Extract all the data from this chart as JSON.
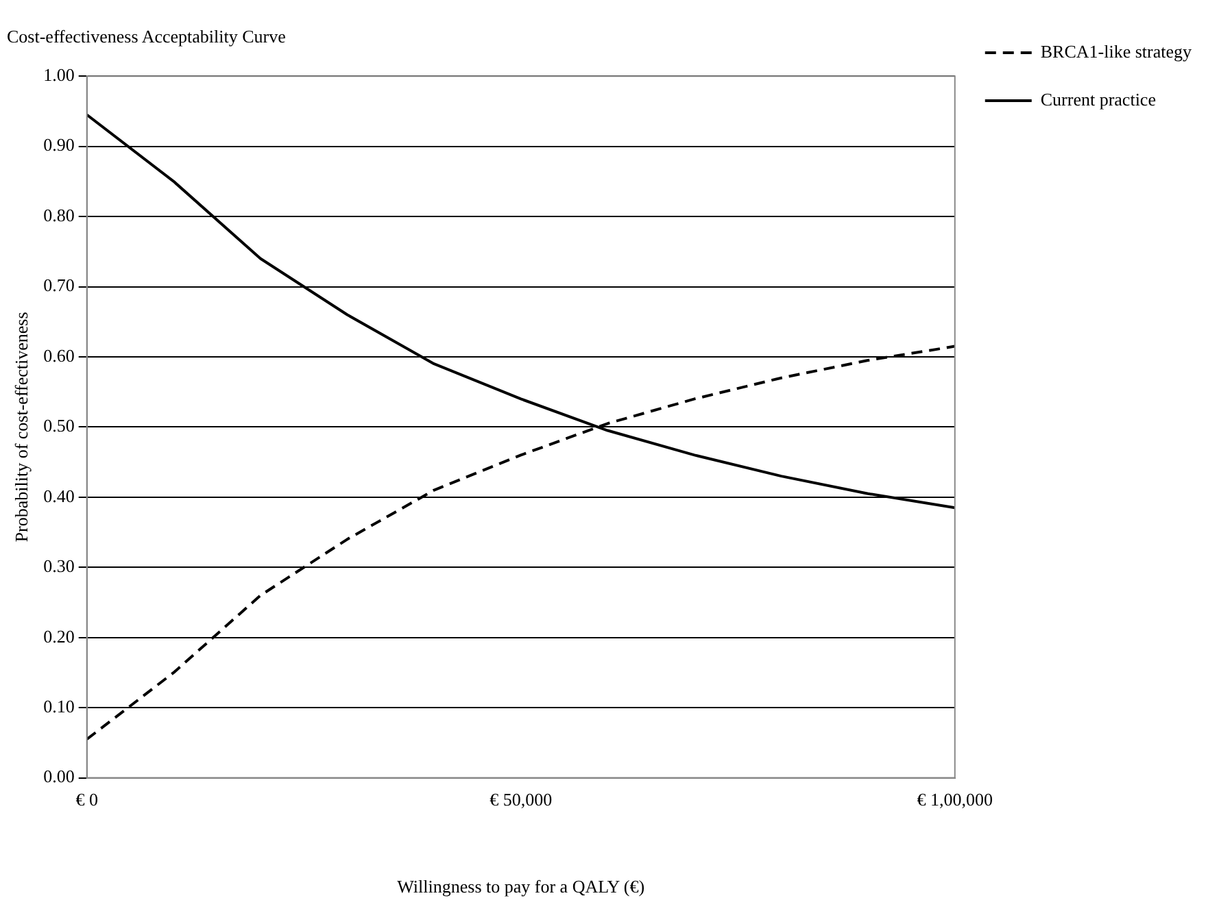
{
  "chart_data": {
    "type": "line",
    "title": "Cost-effectiveness Acceptability Curve",
    "xlabel": "Willingness to pay for a QALY (€)",
    "ylabel": "Probability of cost-effectiveness",
    "x": [
      0,
      10000,
      20000,
      30000,
      40000,
      50000,
      60000,
      70000,
      80000,
      90000,
      100000
    ],
    "series": [
      {
        "name": "BRCA1-like strategy",
        "color": "#000000",
        "line_style": "dashed",
        "values": [
          0.055,
          0.15,
          0.26,
          0.34,
          0.41,
          0.46,
          0.505,
          0.54,
          0.57,
          0.595,
          0.615
        ]
      },
      {
        "name": "Current practice",
        "color": "#000000",
        "line_style": "solid",
        "values": [
          0.945,
          0.85,
          0.74,
          0.66,
          0.59,
          0.54,
          0.495,
          0.46,
          0.43,
          0.405,
          0.385
        ]
      }
    ],
    "xlim": [
      0,
      100000
    ],
    "xticks": [
      {
        "value": 0,
        "label": "€ 0"
      },
      {
        "value": 50000,
        "label": "€ 50,000"
      },
      {
        "value": 100000,
        "label": "€ 1,00,000"
      }
    ],
    "ylim": [
      0,
      1
    ],
    "yticks": [
      {
        "value": 0,
        "label": "0.00"
      },
      {
        "value": 0.1,
        "label": "0.10"
      },
      {
        "value": 0.2,
        "label": "0.20"
      },
      {
        "value": 0.3,
        "label": "0.30"
      },
      {
        "value": 0.4,
        "label": "0.40"
      },
      {
        "value": 0.5,
        "label": "0.50"
      },
      {
        "value": 0.6,
        "label": "0.60"
      },
      {
        "value": 0.7,
        "label": "0.70"
      },
      {
        "value": 0.8,
        "label": "0.80"
      },
      {
        "value": 0.9,
        "label": "0.90"
      },
      {
        "value": 1,
        "label": "1.00"
      }
    ],
    "grid": "y",
    "legend": "top right",
    "marker": "none"
  }
}
